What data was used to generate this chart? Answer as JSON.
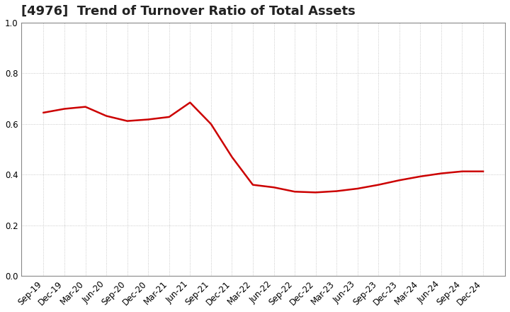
{
  "title": "[4976]  Trend of Turnover Ratio of Total Assets",
  "labels": [
    "Sep-19",
    "Dec-19",
    "Mar-20",
    "Jun-20",
    "Sep-20",
    "Dec-20",
    "Mar-21",
    "Jun-21",
    "Sep-21",
    "Dec-21",
    "Mar-22",
    "Jun-22",
    "Sep-22",
    "Dec-22",
    "Mar-23",
    "Jun-23",
    "Sep-23",
    "Dec-23",
    "Mar-24",
    "Jun-24",
    "Sep-24",
    "Dec-24"
  ],
  "values": [
    0.645,
    0.66,
    0.668,
    0.632,
    0.612,
    0.618,
    0.628,
    0.685,
    0.6,
    0.47,
    0.36,
    0.35,
    0.333,
    0.33,
    0.335,
    0.345,
    0.36,
    0.378,
    0.393,
    0.405,
    0.413,
    0.413
  ],
  "line_color": "#cc0000",
  "line_width": 1.8,
  "ylim": [
    0.0,
    1.0
  ],
  "yticks": [
    0.0,
    0.2,
    0.4,
    0.6,
    0.8,
    1.0
  ],
  "grid_color": "#bbbbbb",
  "bg_color": "#ffffff",
  "title_fontsize": 13,
  "title_color": "#222222",
  "tick_fontsize": 8.5,
  "spine_color": "#888888"
}
